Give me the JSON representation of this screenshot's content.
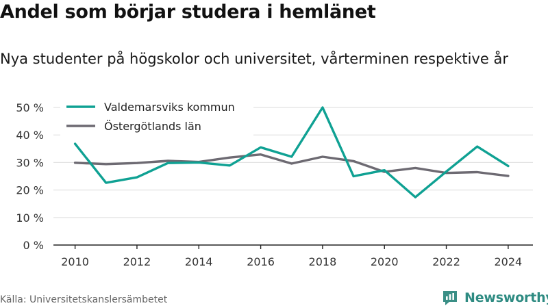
{
  "title": "Andel som börjar studera i hemlänet",
  "subtitle": "Nya studenter på högskolor och universitet, vårterminen respektive år",
  "source": "Källa: Universitetskanslersämbetet",
  "brand": {
    "name": "Newsworthy",
    "icon": "newsworthy-logo-icon",
    "color": "#3a8f86"
  },
  "chart_data": {
    "type": "line",
    "x": [
      2010,
      2011,
      2012,
      2013,
      2014,
      2015,
      2016,
      2017,
      2018,
      2019,
      2020,
      2021,
      2022,
      2023,
      2024
    ],
    "series": [
      {
        "name": "Valdemarsviks kommun",
        "color": "#0fa193",
        "values": [
          36.8,
          22.6,
          24.6,
          29.8,
          30.0,
          28.9,
          35.5,
          32.1,
          50.0,
          25.0,
          27.2,
          17.4,
          26.7,
          35.8,
          28.7
        ]
      },
      {
        "name": "Östergötlands län",
        "color": "#6d6a72",
        "values": [
          29.9,
          29.4,
          29.8,
          30.6,
          30.2,
          31.8,
          32.9,
          29.6,
          32.1,
          30.5,
          26.6,
          28.0,
          26.2,
          26.5,
          25.1
        ]
      }
    ],
    "x_ticks": [
      2010,
      2012,
      2014,
      2016,
      2018,
      2020,
      2022,
      2024
    ],
    "y_ticks": [
      0,
      10,
      20,
      30,
      40,
      50
    ],
    "y_tick_labels": [
      "0 %",
      "10 %",
      "20 %",
      "30 %",
      "40 %",
      "50 %"
    ],
    "xlim": [
      2009.3,
      2024.8
    ],
    "ylim": [
      0,
      50
    ],
    "grid": "horizontal",
    "legend_position": "top-left"
  }
}
